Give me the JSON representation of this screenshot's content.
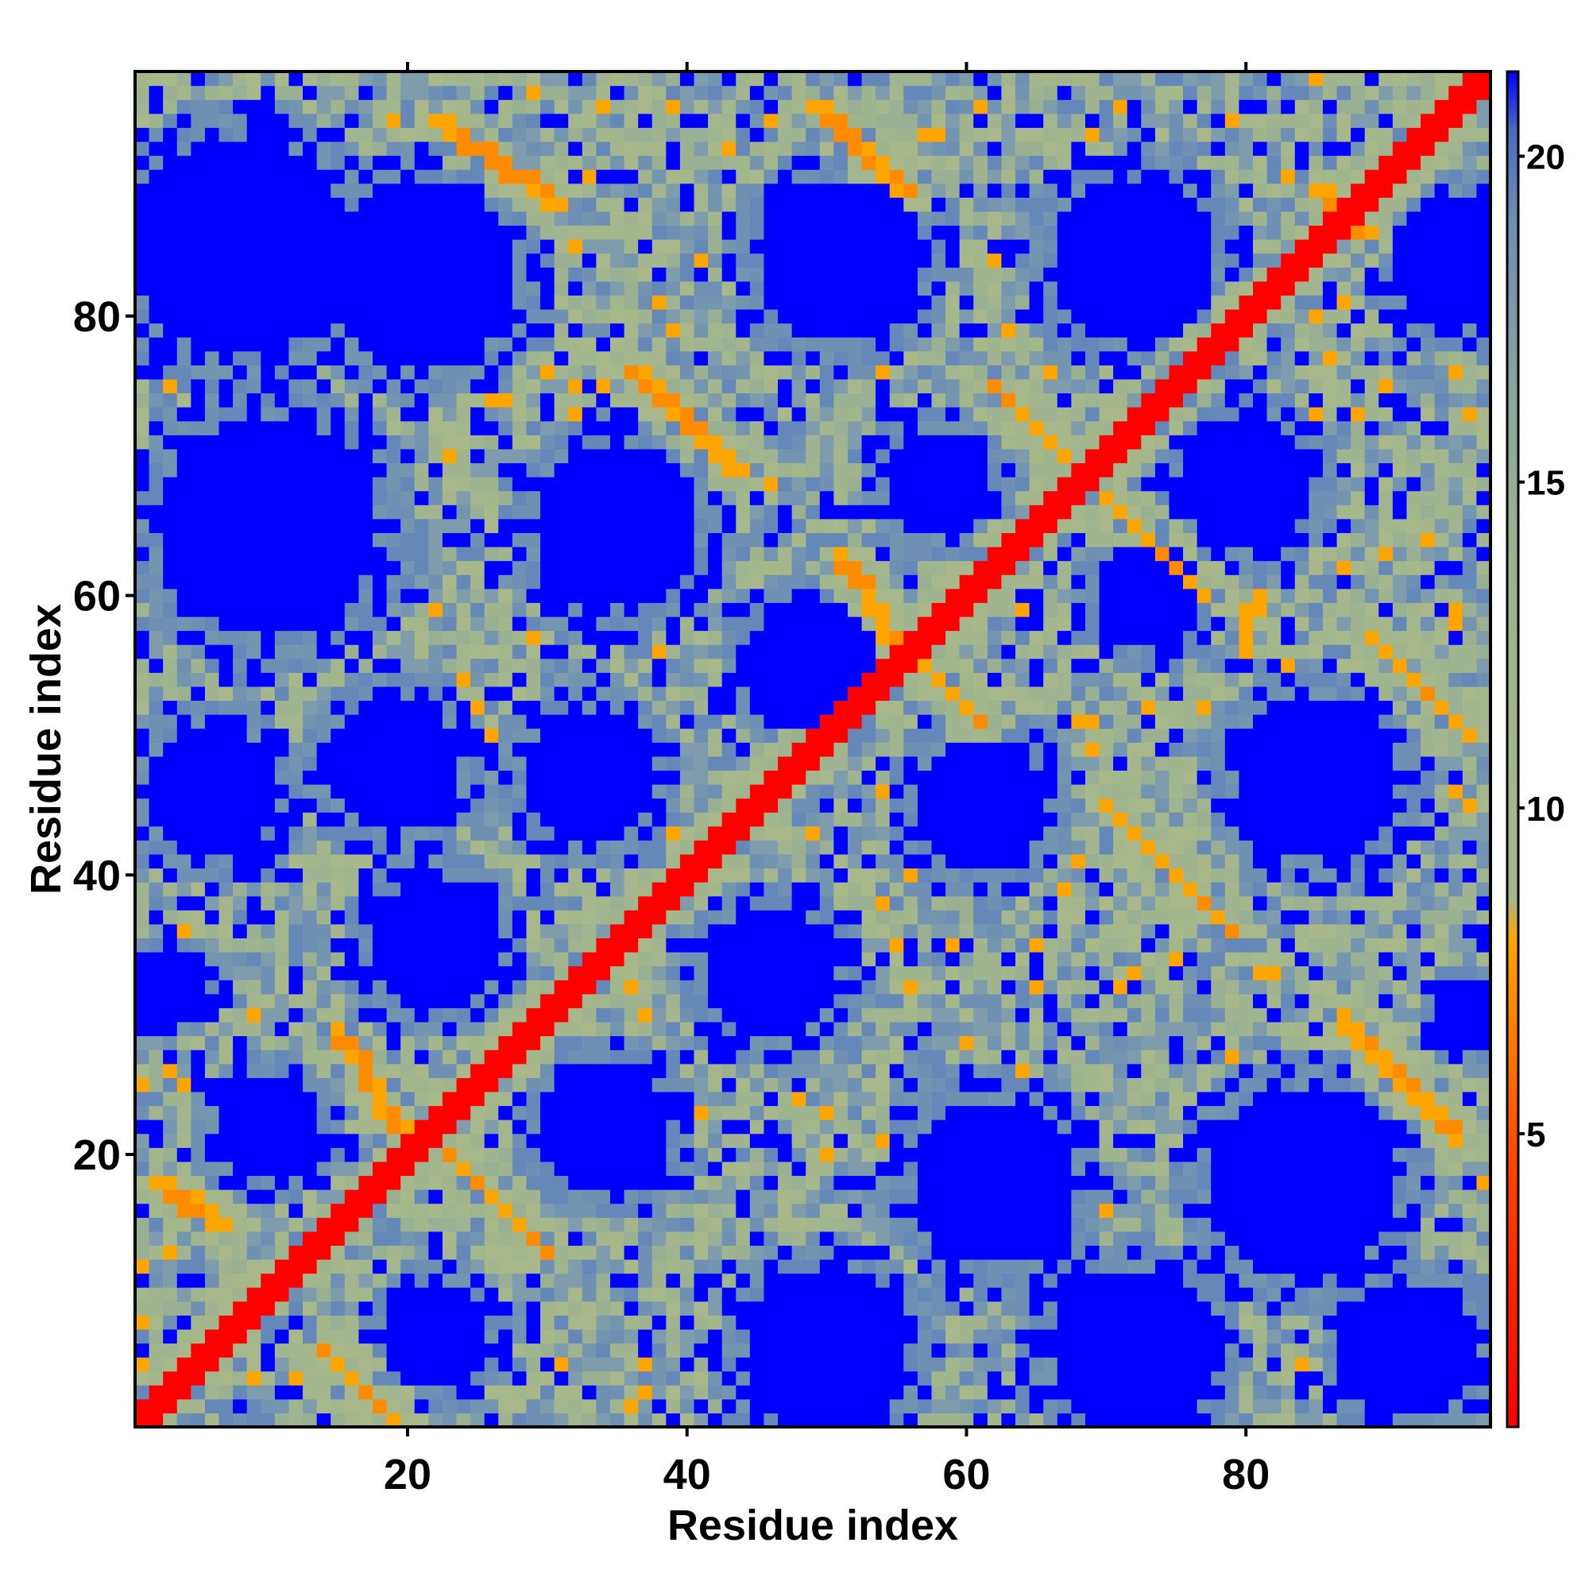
{
  "chart_data": {
    "type": "heatmap",
    "title": "",
    "xlabel": "Residue index",
    "ylabel": "Residue index",
    "n_residues": 97,
    "xlim": [
      1,
      97
    ],
    "ylim": [
      1,
      97
    ],
    "x_ticks": [
      20,
      40,
      60,
      80
    ],
    "y_ticks": [
      20,
      40,
      60,
      80
    ],
    "colorbar": {
      "ticks": [
        5,
        10,
        15,
        20
      ],
      "range": [
        0.5,
        21.3
      ],
      "saturation_value": 21,
      "orientation": "vertical",
      "placement": "right",
      "stops": [
        {
          "value": 0.5,
          "color": "#ff0000"
        },
        {
          "value": 4.5,
          "color": "#ff4400"
        },
        {
          "value": 8.0,
          "color": "#ffa500"
        },
        {
          "value": 8.6,
          "color": "#a8b88a"
        },
        {
          "value": 13.0,
          "color": "#a0b48c"
        },
        {
          "value": 16.0,
          "color": "#8ea89a"
        },
        {
          "value": 19.0,
          "color": "#6f8fb3"
        },
        {
          "value": 20.4,
          "color": "#4a6bc0"
        },
        {
          "value": 21.3,
          "color": "#0000ff"
        }
      ]
    },
    "colors": {
      "contact": "#ff0000",
      "near": "#ffa500",
      "mid": "#a8b88a",
      "far": "#6f8fb3",
      "saturated": "#0000ff"
    },
    "contact_bands": [
      {
        "start": [
          1,
          1
        ],
        "end": [
          97,
          97
        ],
        "note": "diagonal"
      },
      {
        "start": [
          2,
          18
        ],
        "end": [
          7,
          15
        ]
      },
      {
        "start": [
          15,
          29
        ],
        "end": [
          20,
          21
        ]
      },
      {
        "start": [
          14,
          6
        ],
        "end": [
          19,
          1
        ]
      },
      {
        "start": [
          22,
          21
        ],
        "end": [
          30,
          13
        ]
      },
      {
        "start": [
          22,
          94
        ],
        "end": [
          31,
          88
        ]
      },
      {
        "start": [
          36,
          76
        ],
        "end": [
          44,
          69
        ]
      },
      {
        "start": [
          49,
          95
        ],
        "end": [
          56,
          89
        ]
      },
      {
        "start": [
          51,
          63
        ],
        "end": [
          56,
          55
        ]
      },
      {
        "start": [
          56,
          56
        ],
        "end": [
          61,
          51
        ]
      },
      {
        "start": [
          62,
          75
        ],
        "end": [
          68,
          69
        ]
      },
      {
        "start": [
          70,
          67
        ],
        "end": [
          77,
          60
        ]
      },
      {
        "start": [
          70,
          45
        ],
        "end": [
          79,
          36
        ]
      },
      {
        "start": [
          87,
          30
        ],
        "end": [
          95,
          21
        ]
      },
      {
        "start": [
          89,
          57
        ],
        "end": [
          96,
          50
        ]
      },
      {
        "start": [
          85,
          89
        ],
        "end": [
          89,
          86
        ]
      }
    ],
    "far_regions": [
      {
        "center": [
          8,
          85
        ],
        "radius": 8
      },
      {
        "center": [
          21,
          83
        ],
        "radius": 7
      },
      {
        "center": [
          51,
          84
        ],
        "radius": 6
      },
      {
        "center": [
          72,
          84
        ],
        "radius": 6
      },
      {
        "center": [
          95,
          84
        ],
        "radius": 5
      },
      {
        "center": [
          10,
          65
        ],
        "radius": 8
      },
      {
        "center": [
          35,
          65
        ],
        "radius": 6
      },
      {
        "center": [
          49,
          55
        ],
        "radius": 5
      },
      {
        "center": [
          58,
          68
        ],
        "radius": 4
      },
      {
        "center": [
          80,
          68
        ],
        "radius": 5
      },
      {
        "center": [
          6,
          46
        ],
        "radius": 5
      },
      {
        "center": [
          19,
          48
        ],
        "radius": 5
      },
      {
        "center": [
          33,
          47
        ],
        "radius": 5
      },
      {
        "center": [
          61,
          45
        ],
        "radius": 5
      },
      {
        "center": [
          85,
          47
        ],
        "radius": 6
      },
      {
        "center": [
          73,
          60
        ],
        "radius": 4
      },
      {
        "center": [
          22,
          35
        ],
        "radius": 5
      },
      {
        "center": [
          46,
          33
        ],
        "radius": 5
      },
      {
        "center": [
          10,
          22
        ],
        "radius": 4
      },
      {
        "center": [
          34,
          22
        ],
        "radius": 5
      },
      {
        "center": [
          62,
          18
        ],
        "radius": 6
      },
      {
        "center": [
          84,
          18
        ],
        "radius": 7
      },
      {
        "center": [
          22,
          7
        ],
        "radius": 4
      },
      {
        "center": [
          50,
          6
        ],
        "radius": 6
      },
      {
        "center": [
          72,
          6
        ],
        "radius": 6
      },
      {
        "center": [
          92,
          6
        ],
        "radius": 5
      },
      {
        "center": [
          3,
          32
        ],
        "radius": 3
      },
      {
        "center": [
          96,
          30
        ],
        "radius": 3
      }
    ]
  }
}
